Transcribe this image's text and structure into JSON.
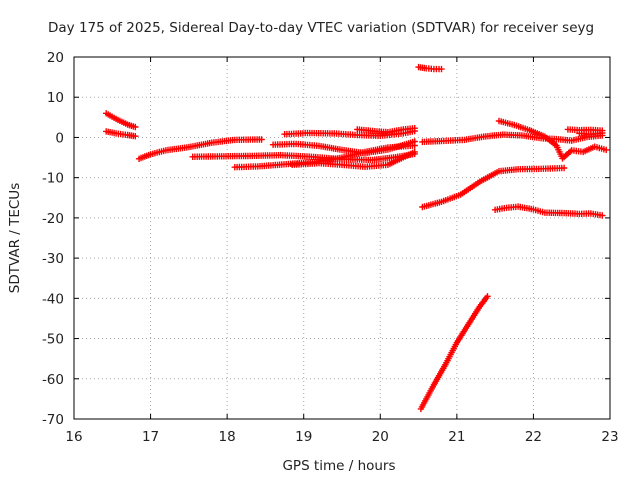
{
  "chart_data": {
    "type": "scatter",
    "title": "Day 175 of 2025, Sidereal Day-to-day VTEC variation (SDTVAR) for receiver seyg",
    "xlabel": "GPS time / hours",
    "ylabel": "SDTVAR / TECUs",
    "xlim": [
      16,
      23
    ],
    "ylim": [
      -70,
      20
    ],
    "xticks": [
      "16",
      "17",
      "18",
      "19",
      "20",
      "21",
      "22",
      "23"
    ],
    "yticks": [
      "20",
      "10",
      "0",
      "-10",
      "-20",
      "-30",
      "-40",
      "-50",
      "-60",
      "-70"
    ],
    "grid": true,
    "marker": "plus",
    "color": "#ff0000",
    "series": [
      {
        "points": [
          [
            16.42,
            6.0
          ],
          [
            16.55,
            4.6
          ],
          [
            16.7,
            3.2
          ],
          [
            16.8,
            2.6
          ]
        ]
      },
      {
        "points": [
          [
            16.42,
            1.5
          ],
          [
            16.55,
            1.0
          ],
          [
            16.7,
            0.6
          ],
          [
            16.8,
            0.3
          ]
        ]
      },
      {
        "points": [
          [
            16.85,
            -5.3
          ],
          [
            17.0,
            -4.2
          ],
          [
            17.2,
            -3.2
          ],
          [
            17.5,
            -2.4
          ],
          [
            17.8,
            -1.3
          ],
          [
            18.1,
            -0.6
          ],
          [
            18.45,
            -0.5
          ]
        ]
      },
      {
        "points": [
          [
            17.55,
            -4.8
          ],
          [
            17.9,
            -4.7
          ],
          [
            18.3,
            -4.6
          ],
          [
            18.7,
            -4.4
          ],
          [
            19.1,
            -4.8
          ],
          [
            19.5,
            -5.4
          ],
          [
            19.9,
            -5.6
          ],
          [
            20.2,
            -4.9
          ],
          [
            20.45,
            -4.1
          ]
        ]
      },
      {
        "points": [
          [
            18.1,
            -7.4
          ],
          [
            18.4,
            -7.2
          ],
          [
            18.8,
            -6.6
          ],
          [
            19.2,
            -6.0
          ],
          [
            19.5,
            -5.0
          ],
          [
            19.8,
            -3.6
          ],
          [
            20.1,
            -2.5
          ],
          [
            20.45,
            -2.0
          ]
        ]
      },
      {
        "points": [
          [
            18.6,
            -1.8
          ],
          [
            18.9,
            -1.6
          ],
          [
            19.2,
            -2.1
          ],
          [
            19.5,
            -3.1
          ],
          [
            19.8,
            -3.9
          ],
          [
            20.1,
            -3.0
          ],
          [
            20.45,
            -1.0
          ]
        ]
      },
      {
        "points": [
          [
            18.85,
            -6.8
          ],
          [
            19.2,
            -6.4
          ],
          [
            19.5,
            -6.8
          ],
          [
            19.8,
            -7.3
          ],
          [
            20.1,
            -6.8
          ],
          [
            20.45,
            -3.6
          ]
        ]
      },
      {
        "points": [
          [
            18.75,
            0.8
          ],
          [
            19.05,
            1.1
          ],
          [
            19.4,
            1.0
          ],
          [
            19.7,
            0.6
          ],
          [
            20.0,
            0.4
          ],
          [
            20.3,
            1.0
          ],
          [
            20.45,
            1.6
          ]
        ]
      },
      {
        "points": [
          [
            19.7,
            2.0
          ],
          [
            19.9,
            1.6
          ],
          [
            20.1,
            1.3
          ],
          [
            20.3,
            2.0
          ],
          [
            20.45,
            2.3
          ]
        ]
      },
      {
        "points": [
          [
            20.5,
            17.5
          ],
          [
            20.6,
            17.2
          ],
          [
            20.7,
            17.0
          ],
          [
            20.8,
            17.0
          ]
        ]
      },
      {
        "points": [
          [
            20.55,
            -1.1
          ],
          [
            20.8,
            -0.9
          ],
          [
            21.1,
            -0.6
          ],
          [
            21.35,
            0.2
          ],
          [
            21.6,
            0.7
          ],
          [
            21.85,
            0.5
          ],
          [
            22.1,
            -0.2
          ],
          [
            22.3,
            -0.4
          ],
          [
            22.5,
            -0.8
          ],
          [
            22.7,
            0.1
          ],
          [
            22.9,
            0.5
          ]
        ]
      },
      {
        "points": [
          [
            20.55,
            -17.3
          ],
          [
            20.8,
            -16.0
          ],
          [
            21.05,
            -14.2
          ],
          [
            21.3,
            -11.0
          ],
          [
            21.55,
            -8.4
          ],
          [
            21.8,
            -7.9
          ],
          [
            22.1,
            -7.8
          ],
          [
            22.4,
            -7.6
          ]
        ]
      },
      {
        "points": [
          [
            21.55,
            4.1
          ],
          [
            21.75,
            3.1
          ],
          [
            21.95,
            1.8
          ],
          [
            22.15,
            0.2
          ],
          [
            22.3,
            -2.0
          ],
          [
            22.38,
            -5.2
          ],
          [
            22.5,
            -3.2
          ],
          [
            22.65,
            -3.6
          ],
          [
            22.8,
            -2.3
          ],
          [
            22.95,
            -3.1
          ]
        ]
      },
      {
        "points": [
          [
            22.45,
            2.0
          ],
          [
            22.6,
            1.8
          ],
          [
            22.75,
            1.9
          ],
          [
            22.9,
            1.7
          ]
        ]
      },
      {
        "points": [
          [
            22.6,
            1.0
          ],
          [
            22.75,
            0.8
          ],
          [
            22.9,
            1.1
          ]
        ]
      },
      {
        "points": [
          [
            21.5,
            -18.0
          ],
          [
            21.65,
            -17.5
          ],
          [
            21.8,
            -17.2
          ],
          [
            22.0,
            -17.9
          ],
          [
            22.15,
            -18.7
          ],
          [
            22.4,
            -18.8
          ],
          [
            22.6,
            -19.0
          ],
          [
            22.75,
            -18.9
          ],
          [
            22.9,
            -19.4
          ]
        ]
      },
      {
        "points": [
          [
            20.53,
            -67.5
          ],
          [
            20.7,
            -61.5
          ],
          [
            20.85,
            -56.5
          ],
          [
            21.0,
            -51.0
          ],
          [
            21.15,
            -46.5
          ],
          [
            21.3,
            -42.0
          ],
          [
            21.4,
            -39.5
          ]
        ]
      }
    ]
  }
}
